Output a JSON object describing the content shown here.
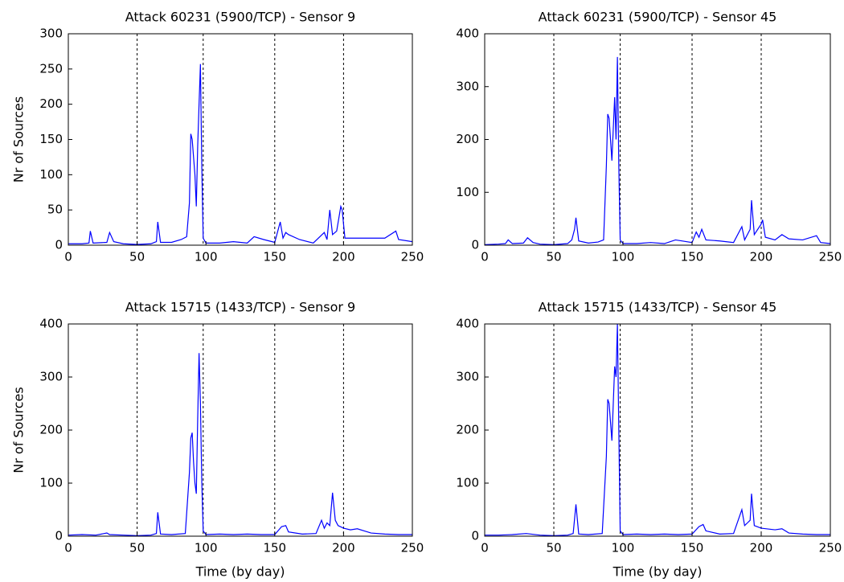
{
  "chart_data": [
    {
      "type": "line",
      "title": "Attack 60231 (5900/TCP) - Sensor 9",
      "ylabel": "Nr of Sources",
      "x": [
        0,
        10,
        15,
        16,
        18,
        28,
        30,
        33,
        40,
        50,
        60,
        64,
        65,
        67,
        75,
        82,
        86,
        88,
        89,
        90,
        92,
        93,
        94,
        95,
        96,
        97,
        98,
        100,
        110,
        120,
        130,
        135,
        142,
        150,
        154,
        156,
        158,
        160,
        168,
        178,
        186,
        188,
        190,
        192,
        195,
        198,
        199,
        201,
        210,
        220,
        230,
        238,
        240,
        250
      ],
      "series": [
        {
          "color": "#0000ff",
          "values": [
            2,
            2,
            3,
            20,
            3,
            4,
            18,
            5,
            2,
            1,
            2,
            5,
            33,
            4,
            4,
            8,
            12,
            60,
            158,
            150,
            100,
            55,
            140,
            200,
            257,
            110,
            10,
            3,
            3,
            5,
            3,
            12,
            8,
            4,
            33,
            10,
            18,
            15,
            8,
            3,
            18,
            8,
            50,
            15,
            20,
            55,
            50,
            10,
            10,
            10,
            10,
            20,
            8,
            5
          ]
        }
      ],
      "xlim": [
        0,
        250
      ],
      "xticks": [
        0,
        50,
        100,
        150,
        200,
        250
      ],
      "ylim": [
        0,
        300
      ],
      "yticks": [
        0,
        50,
        100,
        150,
        200,
        250,
        300
      ],
      "vlines": [
        50,
        98,
        150,
        200
      ]
    },
    {
      "type": "line",
      "title": "Attack 60231 (5900/TCP) - Sensor 45",
      "x": [
        0,
        10,
        15,
        17,
        20,
        28,
        31,
        35,
        40,
        50,
        60,
        63,
        65,
        66,
        68,
        75,
        82,
        86,
        88,
        89,
        90,
        92,
        94,
        95,
        96,
        97,
        98,
        100,
        110,
        120,
        130,
        138,
        150,
        153,
        155,
        157,
        160,
        170,
        180,
        186,
        188,
        192,
        193,
        195,
        200,
        201,
        203,
        210,
        215,
        220,
        230,
        240,
        243,
        250
      ],
      "series": [
        {
          "color": "#0000ff",
          "values": [
            1,
            2,
            3,
            10,
            3,
            4,
            14,
            5,
            2,
            1,
            3,
            10,
            30,
            52,
            8,
            4,
            6,
            10,
            150,
            248,
            240,
            160,
            280,
            200,
            356,
            150,
            10,
            3,
            3,
            5,
            3,
            10,
            5,
            25,
            15,
            30,
            10,
            8,
            5,
            35,
            10,
            30,
            85,
            20,
            40,
            48,
            15,
            10,
            20,
            12,
            10,
            18,
            5,
            3
          ]
        }
      ],
      "xlim": [
        0,
        250
      ],
      "xticks": [
        0,
        50,
        100,
        150,
        200,
        250
      ],
      "ylim": [
        0,
        400
      ],
      "yticks": [
        0,
        100,
        200,
        300,
        400
      ],
      "vlines": [
        50,
        98,
        150,
        200
      ]
    },
    {
      "type": "line",
      "title": "Attack 15715 (1433/TCP) - Sensor 9",
      "ylabel": "Nr of Sources",
      "xlabel": "Time (by day)",
      "x": [
        0,
        10,
        20,
        28,
        30,
        40,
        50,
        60,
        64,
        65,
        67,
        75,
        85,
        88,
        89,
        90,
        91,
        92,
        93,
        94,
        95,
        96,
        97,
        98,
        100,
        110,
        120,
        130,
        140,
        150,
        155,
        158,
        160,
        170,
        180,
        184,
        186,
        188,
        190,
        192,
        194,
        196,
        200,
        205,
        210,
        215,
        220,
        230,
        240,
        250
      ],
      "series": [
        {
          "color": "#0000ff",
          "values": [
            2,
            3,
            2,
            6,
            3,
            2,
            1,
            2,
            5,
            45,
            4,
            3,
            5,
            120,
            185,
            195,
            140,
            100,
            80,
            220,
            345,
            250,
            100,
            10,
            3,
            4,
            3,
            4,
            3,
            3,
            18,
            20,
            8,
            4,
            5,
            30,
            15,
            25,
            20,
            82,
            30,
            20,
            15,
            12,
            14,
            10,
            6,
            4,
            3,
            3
          ]
        }
      ],
      "xlim": [
        0,
        250
      ],
      "xticks": [
        0,
        50,
        100,
        150,
        200,
        250
      ],
      "ylim": [
        0,
        400
      ],
      "yticks": [
        0,
        100,
        200,
        300,
        400
      ],
      "vlines": [
        50,
        98,
        150,
        200
      ]
    },
    {
      "type": "line",
      "title": "Attack 15715 (1433/TCP) - Sensor 45",
      "xlabel": "Time (by day)",
      "x": [
        0,
        10,
        20,
        30,
        40,
        50,
        60,
        64,
        66,
        68,
        75,
        85,
        88,
        89,
        90,
        92,
        94,
        95,
        96,
        97,
        98,
        100,
        110,
        120,
        130,
        140,
        150,
        155,
        158,
        160,
        170,
        180,
        186,
        188,
        190,
        192,
        193,
        195,
        200,
        210,
        215,
        220,
        230,
        240,
        250
      ],
      "series": [
        {
          "color": "#0000ff",
          "values": [
            2,
            2,
            3,
            5,
            2,
            1,
            2,
            5,
            60,
            4,
            3,
            5,
            150,
            258,
            250,
            180,
            320,
            300,
            400,
            200,
            10,
            3,
            4,
            3,
            4,
            3,
            4,
            18,
            22,
            10,
            4,
            5,
            50,
            20,
            25,
            30,
            80,
            20,
            15,
            12,
            14,
            6,
            4,
            3,
            3
          ]
        }
      ],
      "xlim": [
        0,
        250
      ],
      "xticks": [
        0,
        50,
        100,
        150,
        200,
        250
      ],
      "ylim": [
        0,
        400
      ],
      "yticks": [
        0,
        100,
        200,
        300,
        400
      ],
      "vlines": [
        50,
        98,
        150,
        200
      ]
    }
  ]
}
